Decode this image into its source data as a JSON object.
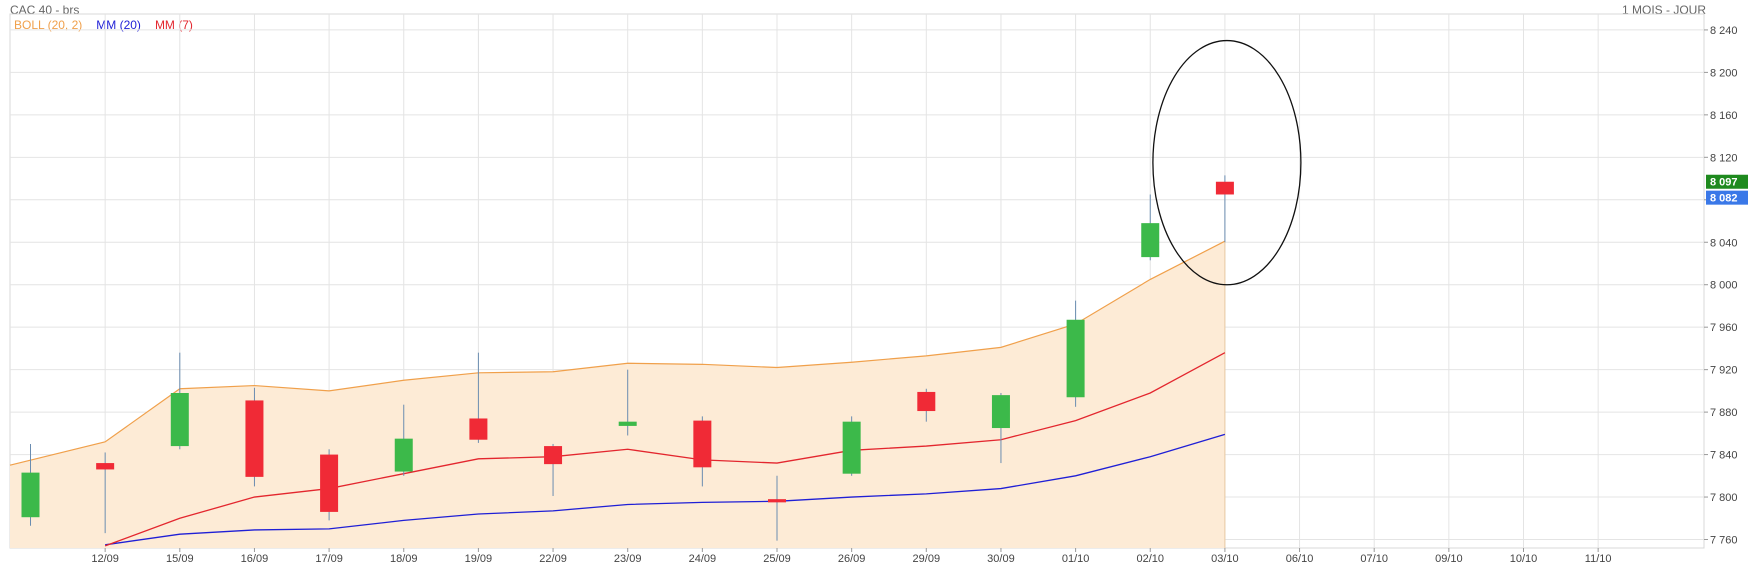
{
  "header": {
    "title": "CAC 40 - brs",
    "period": "1 MOIS - JOUR"
  },
  "legend": [
    {
      "label": "BOLL (20, 2)",
      "color": "#f0a04b"
    },
    {
      "label": "MM (20)",
      "color": "#1f1fd6"
    },
    {
      "label": "MM (7)",
      "color": "#e3262e"
    }
  ],
  "colors": {
    "up": "#3cb94a",
    "down": "#f02a36",
    "grid": "#e4e4e4",
    "band_fill": "#fdebd6",
    "band_line": "#f0a04b",
    "mm20": "#1f1fd6",
    "mm7": "#e3262e",
    "last_badge": "#1e8a1e",
    "ref_badge": "#3a78e8"
  },
  "chart_data": {
    "type": "candlestick",
    "title": "CAC 40 - brs",
    "y_ticks": [
      7760,
      7800,
      7840,
      7880,
      7920,
      7960,
      8000,
      8040,
      8080,
      8120,
      8160,
      8200,
      8240
    ],
    "y_tick_labels": [
      "7 760",
      "7 800",
      "7 840",
      "7 880",
      "7 920",
      "7 960",
      "8 000",
      "8 040",
      "8 080",
      "8 120",
      "8 160",
      "8 200",
      "8 240"
    ],
    "ylim": [
      7752,
      8255
    ],
    "x_labels": [
      "12/09",
      "15/09",
      "16/09",
      "17/09",
      "18/09",
      "19/09",
      "22/09",
      "23/09",
      "24/09",
      "25/09",
      "26/09",
      "29/09",
      "30/09",
      "01/10",
      "02/10",
      "03/10",
      "06/10",
      "07/10",
      "09/10",
      "10/10",
      "11/10"
    ],
    "candles": [
      {
        "date": "11/09",
        "open": 7781,
        "close": 7823,
        "high": 7850,
        "low": 7773
      },
      {
        "date": "12/09",
        "open": 7832,
        "close": 7826,
        "high": 7842,
        "low": 7766
      },
      {
        "date": "15/09",
        "open": 7848,
        "close": 7898,
        "high": 7936,
        "low": 7845
      },
      {
        "date": "16/09",
        "open": 7891,
        "close": 7819,
        "high": 7903,
        "low": 7810
      },
      {
        "date": "17/09",
        "open": 7840,
        "close": 7786,
        "high": 7845,
        "low": 7778
      },
      {
        "date": "18/09",
        "open": 7824,
        "close": 7855,
        "high": 7887,
        "low": 7820
      },
      {
        "date": "19/09",
        "open": 7874,
        "close": 7854,
        "high": 7936,
        "low": 7851
      },
      {
        "date": "22/09",
        "open": 7848,
        "close": 7831,
        "high": 7850,
        "low": 7801
      },
      {
        "date": "23/09",
        "open": 7867,
        "close": 7871,
        "high": 7920,
        "low": 7858
      },
      {
        "date": "24/09",
        "open": 7872,
        "close": 7828,
        "high": 7876,
        "low": 7810
      },
      {
        "date": "25/09",
        "open": 7798,
        "close": 7795,
        "high": 7820,
        "low": 7759
      },
      {
        "date": "26/09",
        "open": 7822,
        "close": 7871,
        "high": 7876,
        "low": 7820
      },
      {
        "date": "29/09",
        "open": 7899,
        "close": 7881,
        "high": 7902,
        "low": 7871
      },
      {
        "date": "30/09",
        "open": 7865,
        "close": 7896,
        "high": 7898,
        "low": 7832
      },
      {
        "date": "01/10",
        "open": 7894,
        "close": 7967,
        "high": 7985,
        "low": 7885
      },
      {
        "date": "02/10",
        "open": 8026,
        "close": 8058,
        "high": 8085,
        "low": 8023
      },
      {
        "date": "03/10",
        "open": 8097,
        "close": 8085,
        "high": 8103,
        "low": 8040
      }
    ],
    "boll_upper": [
      7830,
      7852,
      7902,
      7905,
      7900,
      7910,
      7917,
      7918,
      7926,
      7925,
      7922,
      7927,
      7933,
      7941,
      7963,
      8005,
      8041
    ],
    "mm20": [
      null,
      7755,
      7765,
      7769,
      7770,
      7778,
      7784,
      7787,
      7793,
      7795,
      7796,
      7800,
      7803,
      7808,
      7820,
      7838,
      7859
    ],
    "mm7": [
      null,
      7754,
      7780,
      7800,
      7808,
      7822,
      7836,
      7838,
      7845,
      7835,
      7832,
      7844,
      7848,
      7854,
      7872,
      7898,
      7936
    ],
    "badges": [
      {
        "label": "8 097",
        "value": 8097,
        "color": "#1e8a1e"
      },
      {
        "label": "8 082",
        "value": 8082,
        "color": "#3a78e8"
      }
    ],
    "annotation": {
      "type": "ellipse",
      "center_date": "03/10",
      "center_value": 8115,
      "radius_value": 115
    },
    "grid": true,
    "legend_position": "top-left"
  }
}
